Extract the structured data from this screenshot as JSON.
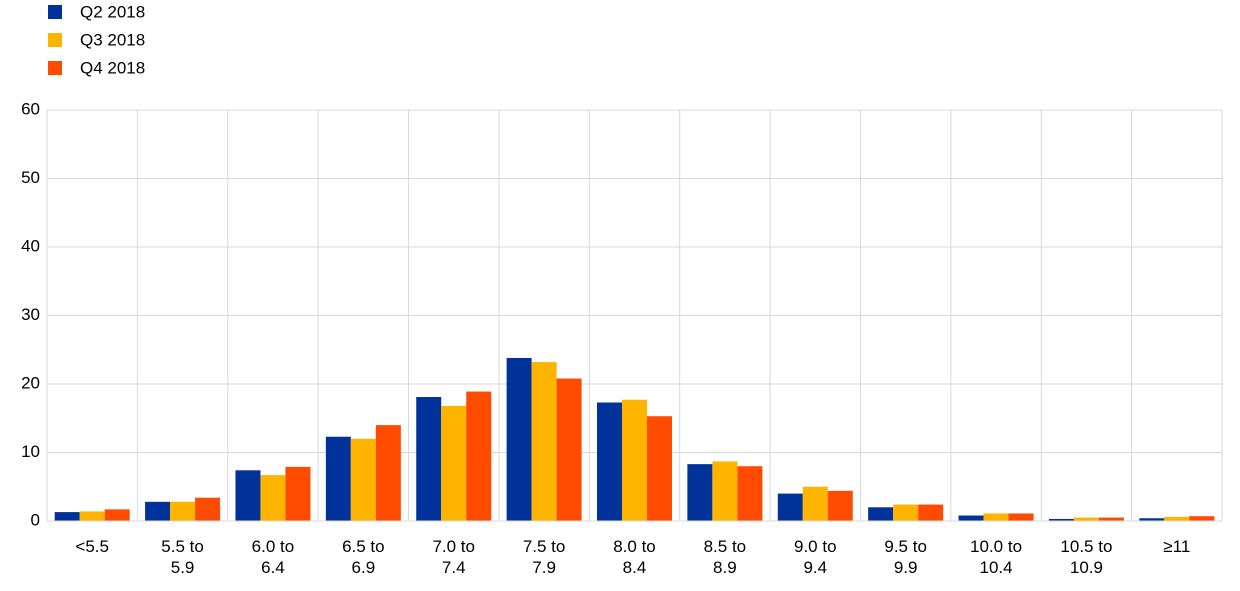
{
  "chart_data": {
    "type": "bar",
    "categories": [
      "<5.5",
      "5.5 to 5.9",
      "6.0 to 6.4",
      "6.5 to 6.9",
      "7.0 to 7.4",
      "7.5 to 7.9",
      "8.0 to 8.4",
      "8.5 to 8.9",
      "9.0 to 9.4",
      "9.5 to 9.9",
      "10.0 to 10.4",
      "10.5 to 10.9",
      "≥11"
    ],
    "series": [
      {
        "name": "Q2 2018",
        "color": "#003299",
        "values": [
          1.3,
          2.8,
          7.4,
          12.3,
          18.1,
          23.8,
          17.3,
          8.3,
          4.0,
          2.0,
          0.8,
          0.3,
          0.4
        ]
      },
      {
        "name": "Q3 2018",
        "color": "#ffb400",
        "values": [
          1.4,
          2.8,
          6.7,
          12.0,
          16.8,
          23.2,
          17.7,
          8.7,
          5.0,
          2.4,
          1.1,
          0.5,
          0.6
        ]
      },
      {
        "name": "Q4 2018",
        "color": "#ff4b00",
        "values": [
          1.7,
          3.4,
          7.9,
          14.0,
          18.9,
          20.8,
          15.3,
          8.0,
          4.4,
          2.4,
          1.1,
          0.5,
          0.7
        ]
      }
    ],
    "ylim": [
      0,
      60
    ],
    "yticks": [
      0,
      10,
      20,
      30,
      40,
      50,
      60
    ],
    "grid": true,
    "legend": "top-left"
  }
}
